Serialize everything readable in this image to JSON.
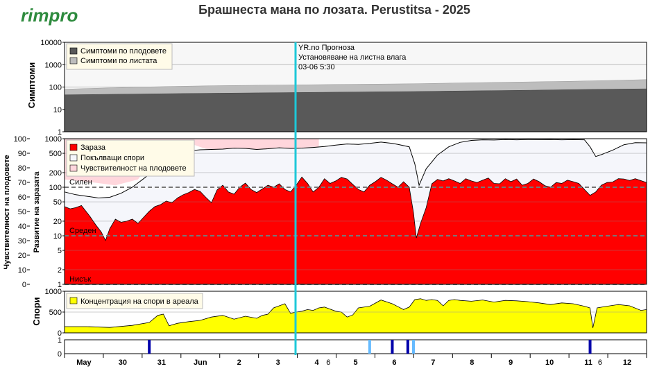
{
  "header": {
    "logo": "rimpro",
    "title": "Брашнеста мана по лозата.  Perustitsa - 2025"
  },
  "colors": {
    "fruit_symptoms": "#595959",
    "leaf_symptoms": "#bdbdbd",
    "infection": "#ff0000",
    "germinating_spores": "#f5f6fb",
    "fruit_susceptibility": "#ffd6dc",
    "spore_concentration": "#ffff00",
    "forecast_line": "#1ec8d8",
    "event_dark": "#0000aa",
    "event_light": "#66bbff"
  },
  "forecast": {
    "line1": "YR.no Прогноза",
    "line2": "Установяване на листна влага",
    "line3": "03-06 5:30"
  },
  "chart_data": [
    {
      "panel": "symptoms",
      "type": "area",
      "ylabel": "Симптоми",
      "yscale": "log",
      "ylim": [
        1,
        10000
      ],
      "yticks": [
        "1",
        "10",
        "100",
        "1000",
        "10000"
      ],
      "legend": [
        "Симптоми по плодовете",
        "Симптоми по листата"
      ],
      "x": [
        0,
        1,
        2,
        3,
        4,
        5,
        6,
        7,
        8,
        9,
        10,
        11,
        12,
        13,
        14,
        15
      ],
      "series": [
        {
          "name": "Симптоми по плодовете",
          "values": [
            45,
            47,
            49,
            51,
            53,
            55,
            57,
            59,
            61,
            63,
            66,
            69,
            72,
            76,
            80,
            83
          ]
        },
        {
          "name": "Симптоми по листата",
          "values": [
            80,
            90,
            100,
            108,
            115,
            120,
            125,
            130,
            135,
            140,
            150,
            160,
            170,
            180,
            195,
            215
          ]
        }
      ]
    },
    {
      "panel": "infection",
      "type": "area",
      "ylabel": "Развитие на заразата",
      "ylabel2": "Чувствителност на плодовете",
      "yscale": "log",
      "ylim": [
        1,
        1000
      ],
      "yticks_left": [
        "1",
        "2",
        "5",
        "10",
        "20",
        "50",
        "100",
        "200",
        "500",
        "1000"
      ],
      "yticks_right": [
        "0",
        "10",
        "20",
        "30",
        "40",
        "50",
        "60",
        "70",
        "80",
        "90",
        "100"
      ],
      "risk_levels": [
        {
          "label": "Силен",
          "value": 100
        },
        {
          "label": "Среден",
          "value": 10
        },
        {
          "label": "Нисък",
          "value": 1
        }
      ],
      "legend": [
        "Зараза",
        "Покълващи спори",
        "Чувствителност на плодовете"
      ],
      "infection": [
        [
          0,
          40
        ],
        [
          0.2,
          36
        ],
        [
          0.4,
          38
        ],
        [
          0.6,
          42
        ],
        [
          0.9,
          25
        ],
        [
          1.1,
          17
        ],
        [
          1.3,
          12
        ],
        [
          1.45,
          8
        ],
        [
          1.6,
          14
        ],
        [
          1.8,
          22
        ],
        [
          2.0,
          19
        ],
        [
          2.2,
          20
        ],
        [
          2.4,
          22
        ],
        [
          2.6,
          18
        ],
        [
          2.8,
          24
        ],
        [
          3.0,
          32
        ],
        [
          3.2,
          40
        ],
        [
          3.4,
          44
        ],
        [
          3.6,
          52
        ],
        [
          3.8,
          48
        ],
        [
          4.0,
          60
        ],
        [
          4.2,
          70
        ],
        [
          4.4,
          78
        ],
        [
          4.6,
          90
        ],
        [
          4.8,
          82
        ],
        [
          5.0,
          62
        ],
        [
          5.2,
          48
        ],
        [
          5.4,
          88
        ],
        [
          5.6,
          110
        ],
        [
          5.8,
          80
        ],
        [
          6.0,
          72
        ],
        [
          6.2,
          100
        ],
        [
          6.4,
          122
        ],
        [
          6.6,
          90
        ],
        [
          6.8,
          78
        ],
        [
          7.0,
          92
        ],
        [
          7.2,
          110
        ],
        [
          7.4,
          100
        ],
        [
          7.6,
          118
        ],
        [
          7.8,
          90
        ],
        [
          8.0,
          80
        ],
        [
          8.2,
          110
        ],
        [
          8.4,
          162
        ],
        [
          8.6,
          120
        ],
        [
          8.8,
          80
        ],
        [
          9.0,
          100
        ],
        [
          9.2,
          150
        ],
        [
          9.4,
          120
        ],
        [
          9.6,
          135
        ],
        [
          9.8,
          160
        ],
        [
          10.0,
          148
        ],
        [
          10.2,
          115
        ],
        [
          10.4,
          90
        ],
        [
          10.6,
          80
        ],
        [
          10.8,
          110
        ],
        [
          11.0,
          130
        ],
        [
          11.2,
          160
        ],
        [
          11.4,
          140
        ],
        [
          11.6,
          118
        ],
        [
          11.8,
          100
        ],
        [
          12.0,
          130
        ],
        [
          12.2,
          100
        ],
        [
          12.35,
          30
        ],
        [
          12.45,
          9
        ],
        [
          12.6,
          18
        ],
        [
          12.8,
          38
        ],
        [
          13.0,
          118
        ],
        [
          13.2,
          145
        ],
        [
          13.4,
          135
        ],
        [
          13.6,
          150
        ],
        [
          13.8,
          135
        ],
        [
          14.0,
          120
        ],
        [
          14.2,
          150
        ],
        [
          14.4,
          135
        ],
        [
          14.6,
          125
        ],
        [
          14.8,
          140
        ],
        [
          15.0,
          155
        ],
        [
          15.2,
          120
        ],
        [
          15.4,
          118
        ],
        [
          15.6,
          150
        ],
        [
          15.8,
          130
        ],
        [
          16.0,
          148
        ],
        [
          16.2,
          110
        ],
        [
          16.4,
          120
        ],
        [
          16.6,
          148
        ],
        [
          16.8,
          130
        ],
        [
          17.0,
          108
        ],
        [
          17.2,
          100
        ],
        [
          17.4,
          125
        ],
        [
          17.6,
          120
        ],
        [
          17.8,
          140
        ],
        [
          18.0,
          130
        ],
        [
          18.2,
          120
        ],
        [
          18.4,
          90
        ],
        [
          18.6,
          68
        ],
        [
          18.8,
          80
        ],
        [
          19.0,
          110
        ],
        [
          19.2,
          125
        ],
        [
          19.4,
          128
        ],
        [
          19.6,
          150
        ],
        [
          19.8,
          148
        ],
        [
          20.0,
          138
        ],
        [
          20.2,
          150
        ],
        [
          20.6,
          125
        ]
      ],
      "germinating_spores": [
        [
          0,
          80
        ],
        [
          0.4,
          70
        ],
        [
          0.8,
          65
        ],
        [
          1.2,
          60
        ],
        [
          1.6,
          62
        ],
        [
          2.0,
          75
        ],
        [
          2.4,
          100
        ],
        [
          2.8,
          150
        ],
        [
          3.2,
          230
        ],
        [
          3.6,
          320
        ],
        [
          4.0,
          460
        ],
        [
          4.4,
          560
        ],
        [
          4.8,
          590
        ],
        [
          5.2,
          600
        ],
        [
          5.6,
          610
        ],
        [
          6.0,
          640
        ],
        [
          6.4,
          630
        ],
        [
          6.8,
          600
        ],
        [
          7.2,
          620
        ],
        [
          7.6,
          650
        ],
        [
          8.0,
          630
        ],
        [
          8.4,
          640
        ],
        [
          8.8,
          660
        ],
        [
          9.2,
          690
        ],
        [
          9.6,
          740
        ],
        [
          10.0,
          780
        ],
        [
          10.4,
          760
        ],
        [
          10.8,
          800
        ],
        [
          11.2,
          850
        ],
        [
          11.6,
          800
        ],
        [
          11.8,
          760
        ],
        [
          12.2,
          680
        ],
        [
          12.4,
          300
        ],
        [
          12.55,
          110
        ],
        [
          12.8,
          240
        ],
        [
          13.2,
          460
        ],
        [
          13.6,
          680
        ],
        [
          14.0,
          840
        ],
        [
          14.4,
          920
        ],
        [
          14.8,
          950
        ],
        [
          15.2,
          940
        ],
        [
          15.6,
          960
        ],
        [
          16.0,
          950
        ],
        [
          16.4,
          960
        ],
        [
          16.8,
          955
        ],
        [
          17.2,
          960
        ],
        [
          17.6,
          950
        ],
        [
          18.0,
          955
        ],
        [
          18.4,
          950
        ],
        [
          18.6,
          680
        ],
        [
          18.8,
          430
        ],
        [
          19.0,
          470
        ],
        [
          19.4,
          580
        ],
        [
          19.8,
          750
        ],
        [
          20.2,
          830
        ],
        [
          20.6,
          820
        ]
      ],
      "fruit_susceptibility_pct": [
        [
          0,
          72
        ],
        [
          1.0,
          70
        ],
        [
          1.8,
          68
        ],
        [
          2.6,
          72
        ],
        [
          3.2,
          88
        ],
        [
          3.8,
          95
        ],
        [
          4.4,
          97
        ],
        [
          5.0,
          93
        ],
        [
          6.0,
          90
        ],
        [
          7.0,
          89
        ],
        [
          8.0,
          88
        ],
        [
          9.0,
          88
        ]
      ]
    },
    {
      "panel": "spores",
      "type": "area",
      "ylabel": "Спори",
      "ylim": [
        0,
        1000
      ],
      "yticks": [
        "0",
        "500",
        "1000"
      ],
      "legend": [
        "Концентрация на спори в ареала"
      ],
      "values": [
        [
          0,
          150
        ],
        [
          0.8,
          150
        ],
        [
          1.6,
          130
        ],
        [
          2.4,
          180
        ],
        [
          3.0,
          250
        ],
        [
          3.3,
          420
        ],
        [
          3.5,
          450
        ],
        [
          3.7,
          170
        ],
        [
          4.0,
          230
        ],
        [
          4.4,
          270
        ],
        [
          4.8,
          300
        ],
        [
          5.2,
          380
        ],
        [
          5.6,
          420
        ],
        [
          6.0,
          330
        ],
        [
          6.4,
          400
        ],
        [
          6.8,
          350
        ],
        [
          7.0,
          420
        ],
        [
          7.2,
          450
        ],
        [
          7.4,
          600
        ],
        [
          7.6,
          650
        ],
        [
          7.8,
          700
        ],
        [
          8.0,
          470
        ],
        [
          8.2,
          500
        ],
        [
          8.4,
          520
        ],
        [
          8.6,
          560
        ],
        [
          8.8,
          540
        ],
        [
          9.0,
          600
        ],
        [
          9.2,
          620
        ],
        [
          9.4,
          570
        ],
        [
          9.6,
          520
        ],
        [
          9.8,
          500
        ],
        [
          10.0,
          380
        ],
        [
          10.2,
          430
        ],
        [
          10.4,
          600
        ],
        [
          10.8,
          640
        ],
        [
          11.2,
          790
        ],
        [
          11.6,
          700
        ],
        [
          11.8,
          630
        ],
        [
          12.0,
          560
        ],
        [
          12.2,
          620
        ],
        [
          12.4,
          800
        ],
        [
          12.6,
          820
        ],
        [
          12.8,
          780
        ],
        [
          13.0,
          800
        ],
        [
          13.2,
          780
        ],
        [
          13.4,
          650
        ],
        [
          13.6,
          780
        ],
        [
          13.8,
          800
        ],
        [
          14.0,
          780
        ],
        [
          14.4,
          760
        ],
        [
          14.8,
          790
        ],
        [
          15.2,
          740
        ],
        [
          15.6,
          780
        ],
        [
          16.0,
          770
        ],
        [
          16.4,
          750
        ],
        [
          16.8,
          720
        ],
        [
          17.2,
          680
        ],
        [
          17.6,
          720
        ],
        [
          18.0,
          700
        ],
        [
          18.4,
          640
        ],
        [
          18.6,
          600
        ],
        [
          18.7,
          120
        ],
        [
          18.85,
          600
        ],
        [
          19.2,
          640
        ],
        [
          19.6,
          680
        ],
        [
          20.0,
          650
        ],
        [
          20.4,
          540
        ],
        [
          20.6,
          560
        ]
      ]
    },
    {
      "panel": "events",
      "type": "bar",
      "ylim": [
        0,
        1
      ],
      "yticks": [
        "0",
        "1"
      ],
      "marks": [
        {
          "x": 3.0,
          "kind": "dark"
        },
        {
          "x": 10.8,
          "kind": "light"
        },
        {
          "x": 11.6,
          "kind": "dark"
        },
        {
          "x": 12.15,
          "kind": "dark"
        },
        {
          "x": 12.35,
          "kind": "light"
        },
        {
          "x": 18.6,
          "kind": "dark"
        }
      ]
    }
  ],
  "xaxis": {
    "ticks": [
      {
        "x": 0.5,
        "label": "May",
        "bold": true
      },
      {
        "x": 1.5,
        "label": "30",
        "bold": true
      },
      {
        "x": 2.5,
        "label": "31",
        "bold": true
      },
      {
        "x": 3.5,
        "label": "Jun",
        "bold": true
      },
      {
        "x": 4.5,
        "label": "2",
        "bold": true
      },
      {
        "x": 5.5,
        "label": "3",
        "bold": true
      },
      {
        "x": 6.5,
        "label": "4",
        "bold": true
      },
      {
        "x": 6.8,
        "label": "6",
        "bold": false
      },
      {
        "x": 7.5,
        "label": "5",
        "bold": true
      },
      {
        "x": 8.5,
        "label": "6",
        "bold": true
      },
      {
        "x": 9.5,
        "label": "7",
        "bold": true
      },
      {
        "x": 10.5,
        "label": "8",
        "bold": true
      },
      {
        "x": 11.5,
        "label": "9",
        "bold": true
      },
      {
        "x": 12.5,
        "label": "10",
        "bold": true
      },
      {
        "x": 13.5,
        "label": "11",
        "bold": true
      },
      {
        "x": 13.8,
        "label": "6",
        "bold": false
      },
      {
        "x": 14.5,
        "label": "12",
        "bold": true
      }
    ],
    "xmax": 15
  }
}
